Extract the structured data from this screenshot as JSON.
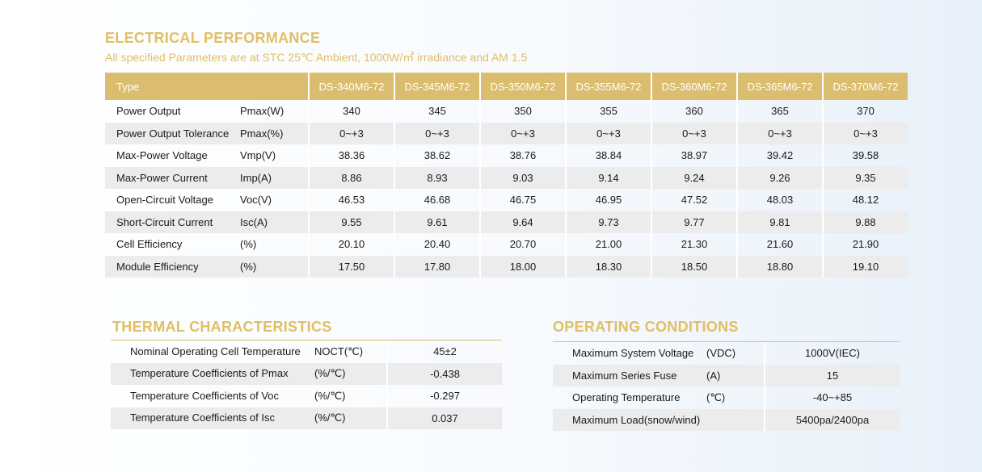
{
  "electrical": {
    "title": "ELECTRICAL PERFORMANCE",
    "subtitle": "All specified Parameters are at STC 25℃ Ambient, 1000W/㎡ irradiance and AM 1.5",
    "type_header": "Type",
    "models": [
      "DS-340M6-72",
      "DS-345M6-72",
      "DS-350M6-72",
      "DS-355M6-72",
      "DS-360M6-72",
      "DS-365M6-72",
      "DS-370M6-72"
    ],
    "rows": [
      {
        "name": "Power Output",
        "unit": "Pmax(W)",
        "values": [
          "340",
          "345",
          "350",
          "355",
          "360",
          "365",
          "370"
        ]
      },
      {
        "name": "Power Output Tolerance",
        "unit": "Pmax(%)",
        "values": [
          "0~+3",
          "0~+3",
          "0~+3",
          "0~+3",
          "0~+3",
          "0~+3",
          "0~+3"
        ]
      },
      {
        "name": "Max-Power Voltage",
        "unit": "Vmp(V)",
        "values": [
          "38.36",
          "38.62",
          "38.76",
          "38.84",
          "38.97",
          "39.42",
          "39.58"
        ]
      },
      {
        "name": "Max-Power Current",
        "unit": "Imp(A)",
        "values": [
          "8.86",
          "8.93",
          "9.03",
          "9.14",
          "9.24",
          "9.26",
          "9.35"
        ]
      },
      {
        "name": "Open-Circuit Voltage",
        "unit": "Voc(V)",
        "values": [
          "46.53",
          "46.68",
          "46.75",
          "46.95",
          "47.52",
          "48.03",
          "48.12"
        ]
      },
      {
        "name": "Short-Circuit Current",
        "unit": "Isc(A)",
        "values": [
          "9.55",
          "9.61",
          "9.64",
          "9.73",
          "9.77",
          "9.81",
          "9.88"
        ]
      },
      {
        "name": "Cell Efficiency",
        "unit": "(%)",
        "values": [
          "20.10",
          "20.40",
          "20.70",
          "21.00",
          "21.30",
          "21.60",
          "21.90"
        ]
      },
      {
        "name": "Module Efficiency",
        "unit": "(%)",
        "values": [
          "17.50",
          "17.80",
          "18.00",
          "18.30",
          "18.50",
          "18.80",
          "19.10"
        ]
      }
    ]
  },
  "thermal": {
    "title": "THERMAL CHARACTERISTICS",
    "rows": [
      {
        "name": "Nominal Operating Cell Temperature",
        "unit": "NOCT(℃)",
        "value": "45±2"
      },
      {
        "name": "Temperature Coefficients of Pmax",
        "unit": "(%/℃)",
        "value": "-0.438"
      },
      {
        "name": "Temperature Coefficients of Voc",
        "unit": "(%/℃)",
        "value": "-0.297"
      },
      {
        "name": "Temperature Coefficients of Isc",
        "unit": "(%/℃)",
        "value": "0.037"
      }
    ]
  },
  "operating": {
    "title": "OPERATING CONDITIONS",
    "rows": [
      {
        "name": "Maximum System Voltage",
        "unit": "(VDC)",
        "value": "1000V(IEC)"
      },
      {
        "name": "Maximum Series Fuse",
        "unit": "(A)",
        "value": "15"
      },
      {
        "name": "Operating Temperature",
        "unit": "(℃)",
        "value": "-40~+85"
      },
      {
        "name": "Maximum Load(snow/wind)",
        "unit": "",
        "value": "5400pa/2400pa"
      }
    ]
  }
}
